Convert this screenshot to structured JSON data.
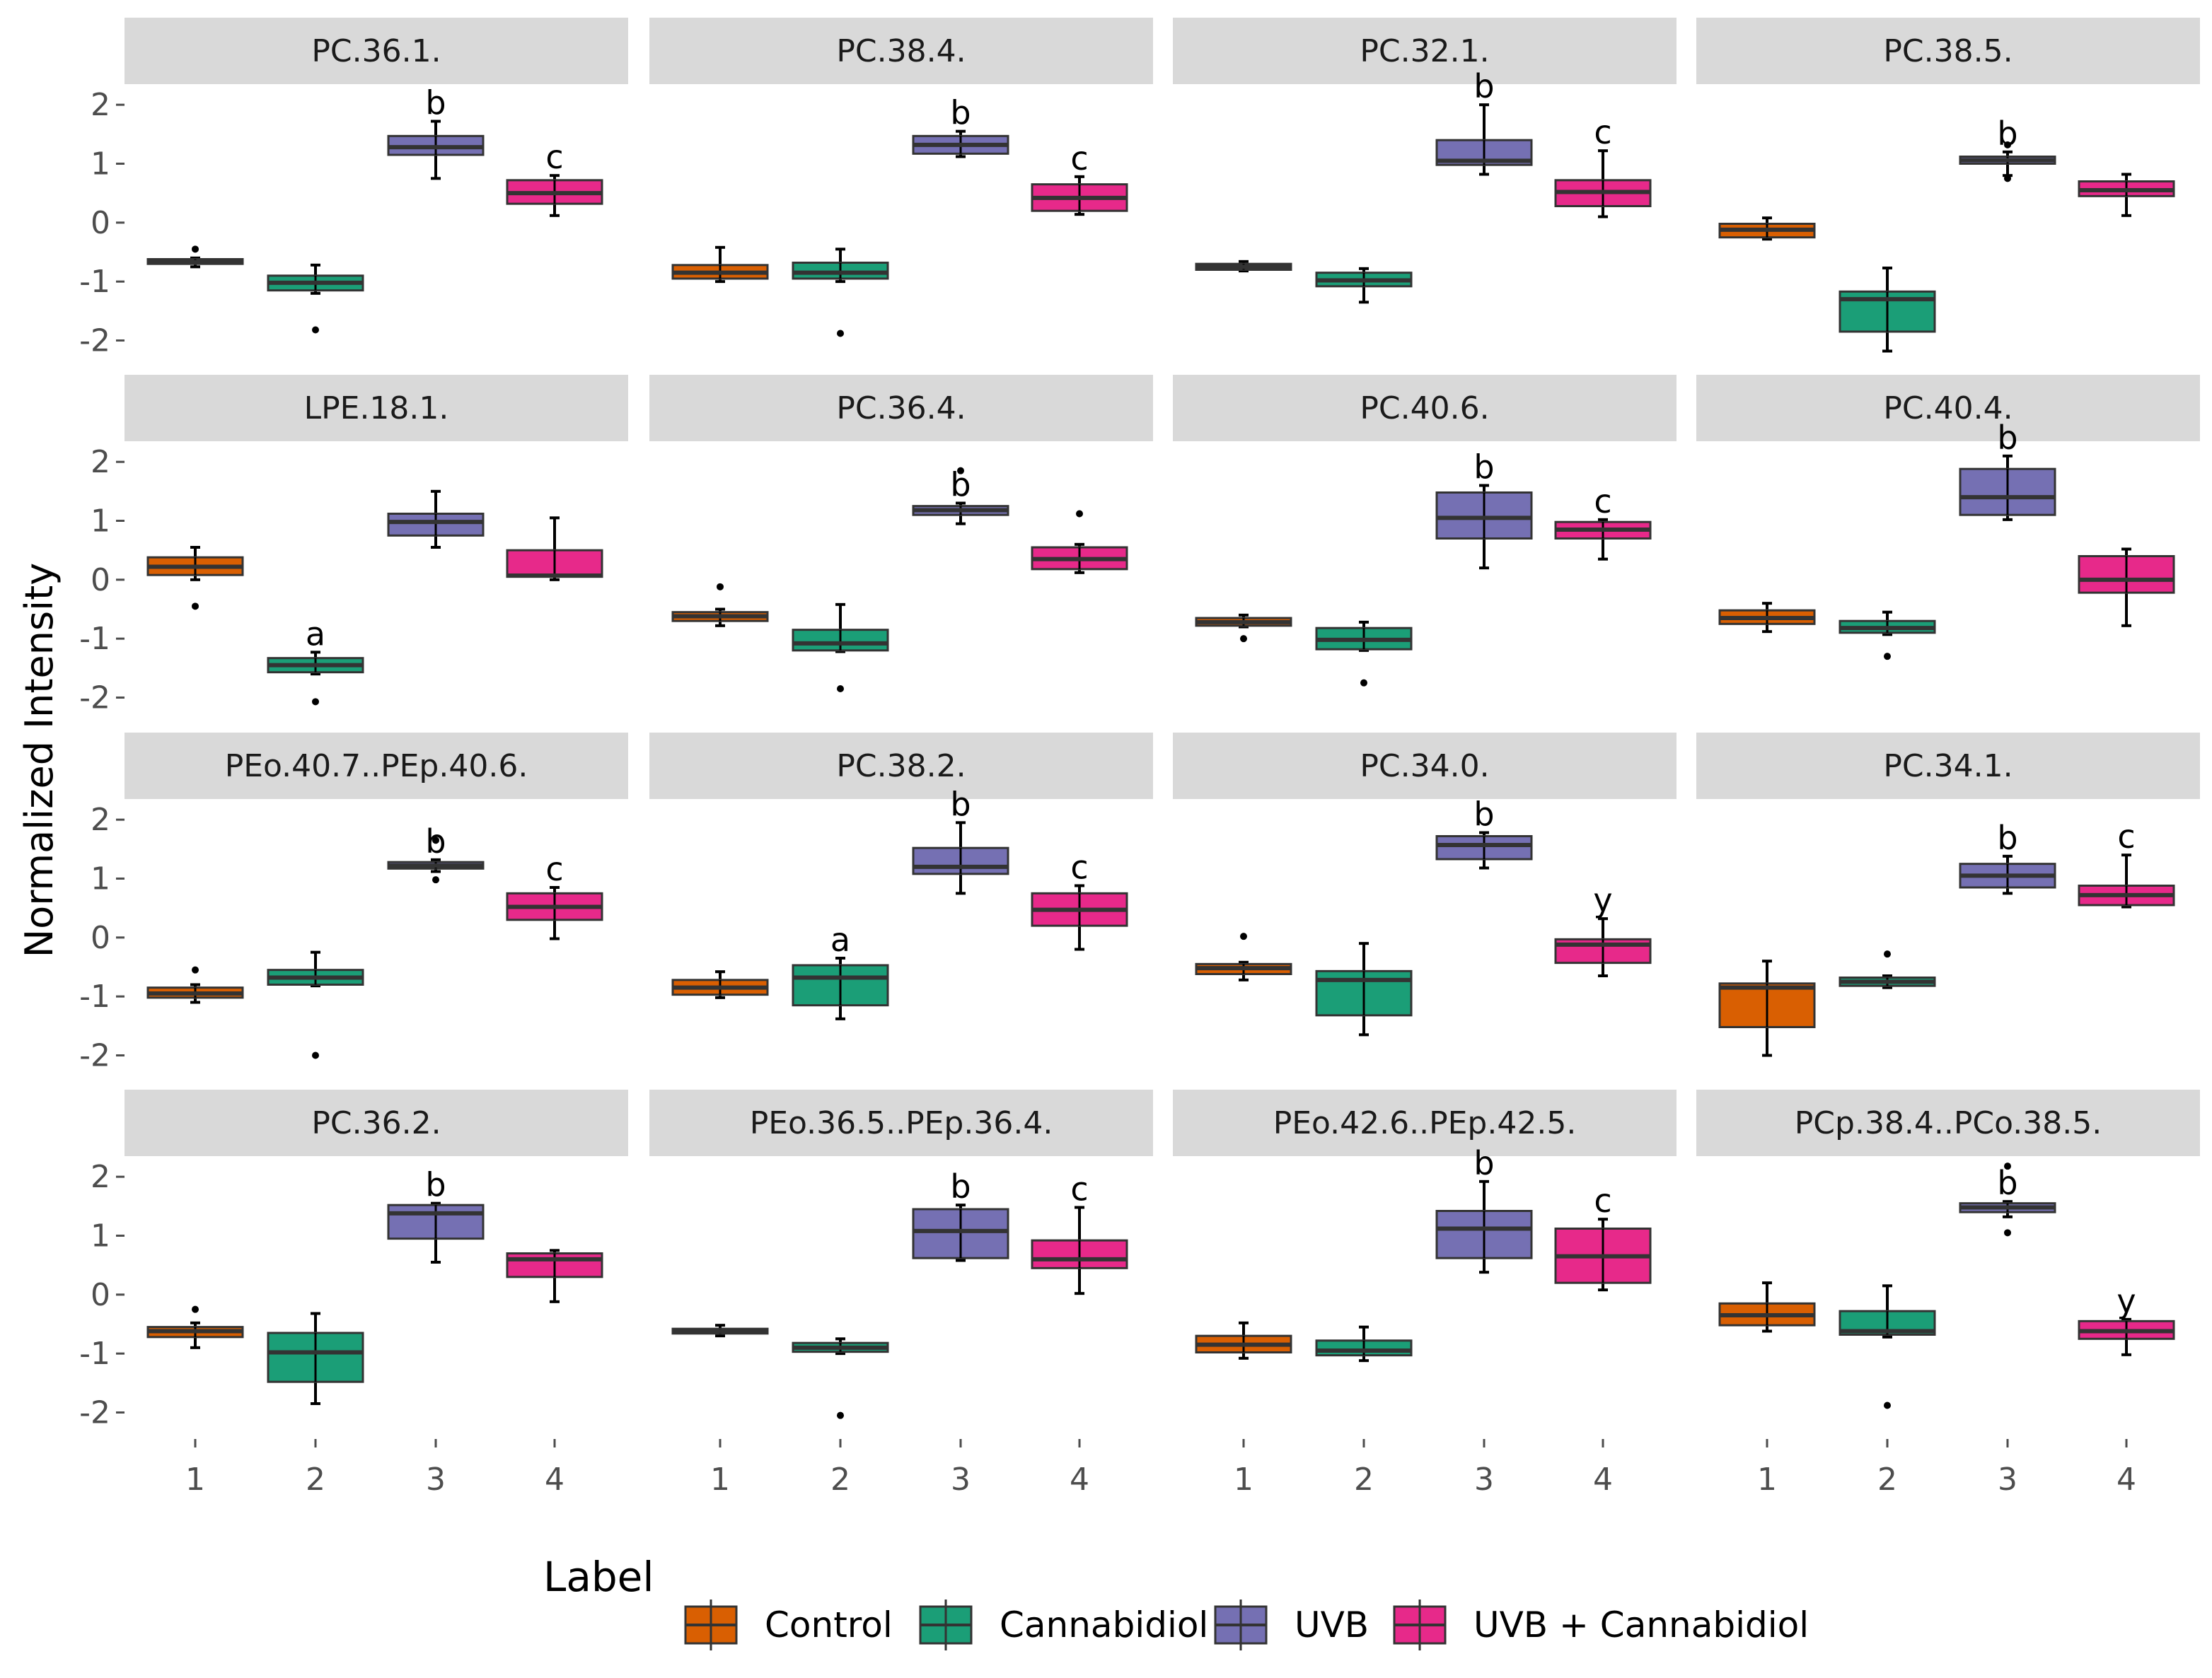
{
  "chart_data": {
    "type": "boxplot-facets",
    "ylabel": "Normalized Intensity",
    "y_ticks": [
      2,
      1,
      0,
      -1,
      -2
    ],
    "y_tick_labels": [
      "2",
      "1",
      "0",
      "-1",
      "-2"
    ],
    "ylim": [
      -2.45,
      2.35
    ],
    "x_categories": [
      "1",
      "2",
      "3",
      "4"
    ],
    "legend": {
      "title": "Label",
      "entries": [
        {
          "label": "Control",
          "color": "#D95F02"
        },
        {
          "label": "Cannabidiol",
          "color": "#1B9E77"
        },
        {
          "label": "UVB",
          "color": "#7570B3"
        },
        {
          "label": "UVB + Cannabidiol",
          "color": "#E7298A"
        }
      ]
    },
    "panels": [
      {
        "title": "PC.36.1.",
        "groups": [
          {
            "q1": -0.7,
            "median": -0.67,
            "q3": -0.62,
            "lo": -0.75,
            "hi": -0.6,
            "outliers": [
              -0.45
            ]
          },
          {
            "q1": -1.15,
            "median": -1.02,
            "q3": -0.9,
            "lo": -1.2,
            "hi": -0.72,
            "outliers": [
              -1.82
            ]
          },
          {
            "q1": 1.15,
            "median": 1.28,
            "q3": 1.47,
            "lo": 0.75,
            "hi": 1.72,
            "outliers": [],
            "sig": "b"
          },
          {
            "q1": 0.32,
            "median": 0.5,
            "q3": 0.72,
            "lo": 0.12,
            "hi": 0.8,
            "outliers": [],
            "sig": "c"
          }
        ]
      },
      {
        "title": "PC.38.4.",
        "groups": [
          {
            "q1": -0.95,
            "median": -0.85,
            "q3": -0.72,
            "lo": -1.0,
            "hi": -0.42,
            "outliers": []
          },
          {
            "q1": -0.95,
            "median": -0.85,
            "q3": -0.68,
            "lo": -1.0,
            "hi": -0.45,
            "outliers": [
              -1.88
            ]
          },
          {
            "q1": 1.17,
            "median": 1.32,
            "q3": 1.47,
            "lo": 1.12,
            "hi": 1.55,
            "outliers": [],
            "sig": "b"
          },
          {
            "q1": 0.2,
            "median": 0.42,
            "q3": 0.65,
            "lo": 0.14,
            "hi": 0.78,
            "outliers": [],
            "sig": "c"
          }
        ]
      },
      {
        "title": "PC.32.1.",
        "groups": [
          {
            "q1": -0.8,
            "median": -0.75,
            "q3": -0.7,
            "lo": -0.82,
            "hi": -0.66,
            "outliers": []
          },
          {
            "q1": -1.08,
            "median": -0.98,
            "q3": -0.85,
            "lo": -1.35,
            "hi": -0.78,
            "outliers": []
          },
          {
            "q1": 0.98,
            "median": 1.05,
            "q3": 1.4,
            "lo": 0.82,
            "hi": 2.0,
            "outliers": [],
            "sig": "b"
          },
          {
            "q1": 0.28,
            "median": 0.52,
            "q3": 0.72,
            "lo": 0.1,
            "hi": 1.22,
            "outliers": [],
            "sig": "c"
          }
        ]
      },
      {
        "title": "PC.38.5.",
        "groups": [
          {
            "q1": -0.25,
            "median": -0.12,
            "q3": -0.02,
            "lo": -0.28,
            "hi": 0.08,
            "outliers": []
          },
          {
            "q1": -1.85,
            "median": -1.3,
            "q3": -1.17,
            "lo": -2.18,
            "hi": -0.77,
            "outliers": []
          },
          {
            "q1": 1.0,
            "median": 1.06,
            "q3": 1.12,
            "lo": 0.8,
            "hi": 1.2,
            "outliers": [
              1.32,
              0.75
            ],
            "sig": "b"
          },
          {
            "q1": 0.45,
            "median": 0.55,
            "q3": 0.7,
            "lo": 0.12,
            "hi": 0.82,
            "outliers": []
          }
        ]
      },
      {
        "title": "LPE.18.1.",
        "groups": [
          {
            "q1": 0.08,
            "median": 0.22,
            "q3": 0.38,
            "lo": 0.0,
            "hi": 0.55,
            "outliers": [
              -0.45
            ]
          },
          {
            "q1": -1.57,
            "median": -1.45,
            "q3": -1.33,
            "lo": -1.6,
            "hi": -1.23,
            "outliers": [
              -2.07
            ],
            "sig": "a"
          },
          {
            "q1": 0.75,
            "median": 0.98,
            "q3": 1.12,
            "lo": 0.55,
            "hi": 1.5,
            "outliers": []
          },
          {
            "q1": 0.05,
            "median": 0.07,
            "q3": 0.5,
            "lo": 0.0,
            "hi": 1.05,
            "outliers": []
          }
        ]
      },
      {
        "title": "PC.36.4.",
        "groups": [
          {
            "q1": -0.7,
            "median": -0.62,
            "q3": -0.55,
            "lo": -0.78,
            "hi": -0.5,
            "outliers": [
              -0.12
            ]
          },
          {
            "q1": -1.2,
            "median": -1.08,
            "q3": -0.85,
            "lo": -1.22,
            "hi": -0.42,
            "outliers": [
              -1.85
            ]
          },
          {
            "q1": 1.1,
            "median": 1.18,
            "q3": 1.25,
            "lo": 0.95,
            "hi": 1.3,
            "outliers": [
              1.85
            ],
            "sig": "b"
          },
          {
            "q1": 0.18,
            "median": 0.35,
            "q3": 0.55,
            "lo": 0.12,
            "hi": 0.6,
            "outliers": [
              1.12
            ]
          }
        ]
      },
      {
        "title": "PC.40.6.",
        "groups": [
          {
            "q1": -0.78,
            "median": -0.72,
            "q3": -0.65,
            "lo": -0.8,
            "hi": -0.6,
            "outliers": [
              -1.0
            ]
          },
          {
            "q1": -1.18,
            "median": -1.02,
            "q3": -0.82,
            "lo": -1.2,
            "hi": -0.72,
            "outliers": [
              -1.75
            ]
          },
          {
            "q1": 0.7,
            "median": 1.05,
            "q3": 1.48,
            "lo": 0.2,
            "hi": 1.6,
            "outliers": [],
            "sig": "b"
          },
          {
            "q1": 0.7,
            "median": 0.85,
            "q3": 0.98,
            "lo": 0.35,
            "hi": 1.02,
            "outliers": [],
            "sig": "c"
          }
        ]
      },
      {
        "title": "PC.40.4.",
        "groups": [
          {
            "q1": -0.75,
            "median": -0.65,
            "q3": -0.52,
            "lo": -0.88,
            "hi": -0.4,
            "outliers": []
          },
          {
            "q1": -0.9,
            "median": -0.82,
            "q3": -0.7,
            "lo": -0.93,
            "hi": -0.55,
            "outliers": [
              -1.3
            ]
          },
          {
            "q1": 1.1,
            "median": 1.4,
            "q3": 1.88,
            "lo": 1.02,
            "hi": 2.1,
            "outliers": [],
            "sig": "b"
          },
          {
            "q1": -0.22,
            "median": 0.0,
            "q3": 0.4,
            "lo": -0.78,
            "hi": 0.52,
            "outliers": []
          }
        ]
      },
      {
        "title": "PEo.40.7..PEp.40.6.",
        "groups": [
          {
            "q1": -1.02,
            "median": -0.95,
            "q3": -0.85,
            "lo": -1.1,
            "hi": -0.8,
            "outliers": [
              -0.55
            ]
          },
          {
            "q1": -0.8,
            "median": -0.68,
            "q3": -0.55,
            "lo": -0.82,
            "hi": -0.25,
            "outliers": [
              -2.0
            ]
          },
          {
            "q1": 1.17,
            "median": 1.22,
            "q3": 1.28,
            "lo": 1.12,
            "hi": 1.32,
            "outliers": [
              1.65,
              0.98
            ],
            "sig": "b"
          },
          {
            "q1": 0.3,
            "median": 0.52,
            "q3": 0.75,
            "lo": -0.02,
            "hi": 0.85,
            "outliers": [],
            "sig": "c"
          }
        ]
      },
      {
        "title": "PC.38.2.",
        "groups": [
          {
            "q1": -0.97,
            "median": -0.85,
            "q3": -0.72,
            "lo": -1.02,
            "hi": -0.58,
            "outliers": []
          },
          {
            "q1": -1.15,
            "median": -0.68,
            "q3": -0.47,
            "lo": -1.38,
            "hi": -0.35,
            "outliers": [],
            "sig": "a"
          },
          {
            "q1": 1.08,
            "median": 1.2,
            "q3": 1.52,
            "lo": 0.75,
            "hi": 1.95,
            "outliers": [],
            "sig": "b"
          },
          {
            "q1": 0.2,
            "median": 0.47,
            "q3": 0.75,
            "lo": -0.2,
            "hi": 0.88,
            "outliers": [],
            "sig": "c"
          }
        ]
      },
      {
        "title": "PC.34.0.",
        "groups": [
          {
            "q1": -0.62,
            "median": -0.52,
            "q3": -0.45,
            "lo": -0.72,
            "hi": -0.42,
            "outliers": [
              0.02
            ]
          },
          {
            "q1": -1.32,
            "median": -0.72,
            "q3": -0.57,
            "lo": -1.65,
            "hi": -0.1,
            "outliers": []
          },
          {
            "q1": 1.33,
            "median": 1.57,
            "q3": 1.72,
            "lo": 1.18,
            "hi": 1.78,
            "outliers": [],
            "sig": "b"
          },
          {
            "q1": -0.43,
            "median": -0.12,
            "q3": -0.03,
            "lo": -0.65,
            "hi": 0.32,
            "outliers": [],
            "sig": "y"
          }
        ]
      },
      {
        "title": "PC.34.1.",
        "groups": [
          {
            "q1": -1.52,
            "median": -0.85,
            "q3": -0.78,
            "lo": -2.0,
            "hi": -0.4,
            "outliers": []
          },
          {
            "q1": -0.82,
            "median": -0.75,
            "q3": -0.68,
            "lo": -0.85,
            "hi": -0.65,
            "outliers": [
              -0.28
            ]
          },
          {
            "q1": 0.85,
            "median": 1.05,
            "q3": 1.25,
            "lo": 0.75,
            "hi": 1.38,
            "outliers": [],
            "sig": "b"
          },
          {
            "q1": 0.55,
            "median": 0.72,
            "q3": 0.88,
            "lo": 0.52,
            "hi": 1.4,
            "outliers": [],
            "sig": "c"
          }
        ]
      },
      {
        "title": "PC.36.2.",
        "groups": [
          {
            "q1": -0.72,
            "median": -0.62,
            "q3": -0.55,
            "lo": -0.9,
            "hi": -0.48,
            "outliers": [
              -0.25
            ]
          },
          {
            "q1": -1.48,
            "median": -0.98,
            "q3": -0.65,
            "lo": -1.85,
            "hi": -0.32,
            "outliers": []
          },
          {
            "q1": 0.95,
            "median": 1.38,
            "q3": 1.52,
            "lo": 0.55,
            "hi": 1.55,
            "outliers": [],
            "sig": "b"
          },
          {
            "q1": 0.3,
            "median": 0.6,
            "q3": 0.7,
            "lo": -0.12,
            "hi": 0.75,
            "outliers": []
          }
        ]
      },
      {
        "title": "PEo.36.5..PEp.36.4.",
        "groups": [
          {
            "q1": -0.66,
            "median": -0.62,
            "q3": -0.58,
            "lo": -0.7,
            "hi": -0.52,
            "outliers": []
          },
          {
            "q1": -0.97,
            "median": -0.9,
            "q3": -0.82,
            "lo": -1.0,
            "hi": -0.75,
            "outliers": [
              -2.05
            ]
          },
          {
            "q1": 0.62,
            "median": 1.08,
            "q3": 1.45,
            "lo": 0.58,
            "hi": 1.52,
            "outliers": [],
            "sig": "b"
          },
          {
            "q1": 0.45,
            "median": 0.6,
            "q3": 0.92,
            "lo": 0.02,
            "hi": 1.48,
            "outliers": [],
            "sig": "c"
          }
        ]
      },
      {
        "title": "PEo.42.6..PEp.42.5.",
        "groups": [
          {
            "q1": -0.98,
            "median": -0.85,
            "q3": -0.7,
            "lo": -1.08,
            "hi": -0.48,
            "outliers": []
          },
          {
            "q1": -1.03,
            "median": -0.95,
            "q3": -0.78,
            "lo": -1.12,
            "hi": -0.55,
            "outliers": []
          },
          {
            "q1": 0.62,
            "median": 1.12,
            "q3": 1.42,
            "lo": 0.38,
            "hi": 1.92,
            "outliers": [],
            "sig": "b"
          },
          {
            "q1": 0.2,
            "median": 0.65,
            "q3": 1.12,
            "lo": 0.08,
            "hi": 1.28,
            "outliers": [],
            "sig": "c"
          }
        ]
      },
      {
        "title": "PCp.38.4..PCo.38.5.",
        "groups": [
          {
            "q1": -0.52,
            "median": -0.35,
            "q3": -0.15,
            "lo": -0.62,
            "hi": 0.2,
            "outliers": []
          },
          {
            "q1": -0.68,
            "median": -0.62,
            "q3": -0.28,
            "lo": -0.72,
            "hi": 0.15,
            "outliers": [
              -1.88
            ]
          },
          {
            "q1": 1.4,
            "median": 1.48,
            "q3": 1.55,
            "lo": 1.32,
            "hi": 1.58,
            "outliers": [
              2.18,
              1.05
            ],
            "sig": "b"
          },
          {
            "q1": -0.75,
            "median": -0.62,
            "q3": -0.45,
            "lo": -1.02,
            "hi": -0.42,
            "outliers": [],
            "sig": "y"
          }
        ]
      }
    ]
  }
}
